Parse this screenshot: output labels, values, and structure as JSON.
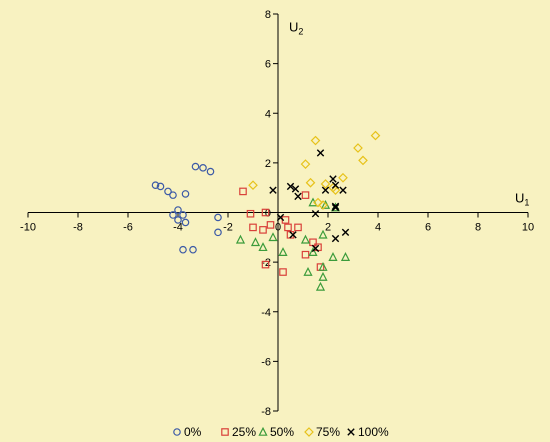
{
  "chart_data": {
    "type": "scatter",
    "xlabel": "U",
    "xlabel_sub": "1",
    "ylabel": "U",
    "ylabel_sub": "2",
    "xlim": [
      -10,
      10
    ],
    "ylim": [
      -8,
      8
    ],
    "x_ticks": [
      "-10",
      "-8",
      "-6",
      "-4",
      "-2",
      "0",
      "2",
      "4",
      "6",
      "8",
      "10"
    ],
    "y_ticks": [
      "-8",
      "-6",
      "-4",
      "-2",
      "0",
      "2",
      "4",
      "6",
      "8"
    ],
    "grid": false,
    "legend_position": "bottom",
    "series": [
      {
        "name": "0%",
        "marker": "circle",
        "color": "#3c5aa6",
        "points": [
          [
            -4.9,
            1.1
          ],
          [
            -4.7,
            1.05
          ],
          [
            -4.4,
            0.85
          ],
          [
            -4.2,
            0.7
          ],
          [
            -3.7,
            0.75
          ],
          [
            -3.3,
            1.85
          ],
          [
            -3.0,
            1.8
          ],
          [
            -2.7,
            1.65
          ],
          [
            -4.2,
            -0.1
          ],
          [
            -4.0,
            0.1
          ],
          [
            -3.8,
            -0.1
          ],
          [
            -4.0,
            -0.3
          ],
          [
            -3.7,
            -0.4
          ],
          [
            -2.4,
            -0.2
          ],
          [
            -3.8,
            -1.5
          ],
          [
            -3.4,
            -1.5
          ],
          [
            -2.4,
            -0.8
          ]
        ]
      },
      {
        "name": "25%",
        "marker": "square",
        "color": "#d9403a",
        "points": [
          [
            -1.4,
            0.85
          ],
          [
            -1.1,
            -0.05
          ],
          [
            -0.5,
            0.0
          ],
          [
            -0.3,
            -0.5
          ],
          [
            -1.0,
            -0.6
          ],
          [
            -0.6,
            -0.7
          ],
          [
            0.3,
            -0.3
          ],
          [
            0.8,
            -0.6
          ],
          [
            1.1,
            0.7
          ],
          [
            0.5,
            -0.9
          ],
          [
            -0.5,
            -2.1
          ],
          [
            0.2,
            -2.4
          ],
          [
            1.4,
            -1.2
          ],
          [
            1.6,
            -1.4
          ],
          [
            1.1,
            -1.7
          ],
          [
            1.7,
            -2.2
          ],
          [
            0.4,
            -0.6
          ]
        ]
      },
      {
        "name": "50%",
        "marker": "triangle",
        "color": "#3b9b3b",
        "points": [
          [
            -1.5,
            -1.1
          ],
          [
            -0.9,
            -1.2
          ],
          [
            -0.2,
            -1.0
          ],
          [
            -0.6,
            -1.4
          ],
          [
            0.2,
            -1.6
          ],
          [
            1.1,
            -1.1
          ],
          [
            1.4,
            -1.6
          ],
          [
            1.8,
            -2.2
          ],
          [
            1.8,
            -2.6
          ],
          [
            1.2,
            -2.4
          ],
          [
            2.2,
            -1.8
          ],
          [
            2.7,
            -1.8
          ],
          [
            1.7,
            -3.0
          ],
          [
            1.8,
            -0.9
          ],
          [
            1.9,
            0.3
          ],
          [
            2.3,
            0.2
          ],
          [
            1.4,
            0.4
          ]
        ]
      },
      {
        "name": "75%",
        "marker": "diamond",
        "color": "#e7c21a",
        "points": [
          [
            -1.0,
            1.1
          ],
          [
            1.1,
            1.95
          ],
          [
            1.3,
            1.2
          ],
          [
            1.5,
            2.9
          ],
          [
            1.9,
            1.15
          ],
          [
            2.2,
            1.0
          ],
          [
            2.6,
            1.4
          ],
          [
            3.2,
            2.6
          ],
          [
            3.4,
            2.1
          ],
          [
            3.9,
            3.1
          ],
          [
            2.3,
            0.9
          ],
          [
            1.6,
            0.4
          ],
          [
            1.8,
            0.3
          ]
        ]
      },
      {
        "name": "100%",
        "marker": "x",
        "color": "#000000",
        "points": [
          [
            -0.2,
            0.9
          ],
          [
            0.5,
            1.05
          ],
          [
            0.7,
            0.95
          ],
          [
            0.8,
            0.65
          ],
          [
            1.5,
            -0.05
          ],
          [
            1.7,
            2.4
          ],
          [
            1.9,
            0.9
          ],
          [
            2.2,
            1.35
          ],
          [
            2.3,
            1.1
          ],
          [
            2.6,
            0.9
          ],
          [
            2.3,
            0.25
          ],
          [
            2.3,
            0.2
          ],
          [
            0.1,
            -0.2
          ],
          [
            0.6,
            -0.9
          ],
          [
            1.5,
            -1.45
          ],
          [
            2.3,
            -1.05
          ],
          [
            2.7,
            -0.8
          ]
        ]
      }
    ]
  }
}
